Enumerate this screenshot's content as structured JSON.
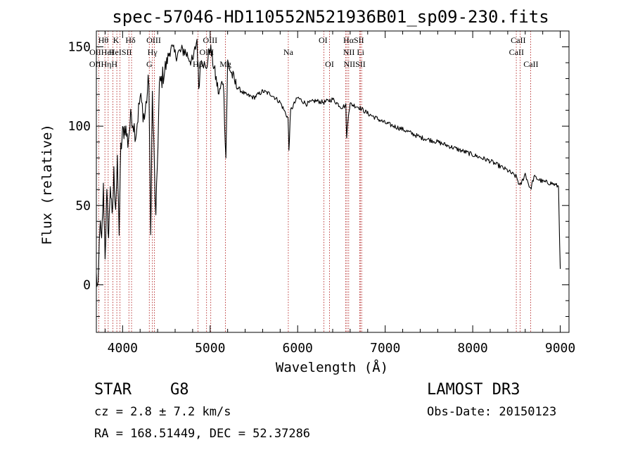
{
  "chart_data": {
    "type": "line",
    "title": "spec-57046-HD110552N521936B01_sp09-230.fits",
    "xlabel": "Wavelength (Å)",
    "ylabel": "Flux (relative)",
    "xlim": [
      3700,
      9100
    ],
    "ylim": [
      -30,
      160
    ],
    "xticks": [
      4000,
      5000,
      6000,
      7000,
      8000,
      9000
    ],
    "xtick_labels": [
      "4000",
      "5000",
      "6000",
      "7000",
      "8000",
      "9000"
    ],
    "yticks": [
      0,
      50,
      100,
      150
    ],
    "ytick_labels": [
      "0",
      "50",
      "100",
      "150"
    ],
    "grid": false,
    "series": [
      {
        "name": "flux",
        "x": [
          3700,
          3720,
          3740,
          3760,
          3780,
          3800,
          3820,
          3840,
          3860,
          3880,
          3900,
          3920,
          3940,
          3960,
          3980,
          4000,
          4030,
          4060,
          4100,
          4150,
          4200,
          4250,
          4300,
          4320,
          4340,
          4380,
          4420,
          4480,
          4550,
          4600,
          4700,
          4800,
          4850,
          4870,
          4900,
          4950,
          5000,
          5100,
          5150,
          5180,
          5200,
          5300,
          5400,
          5500,
          5600,
          5700,
          5800,
          5890,
          5900,
          5920,
          6000,
          6100,
          6200,
          6300,
          6400,
          6500,
          6550,
          6560,
          6580,
          6600,
          6700,
          6800,
          6900,
          7000,
          7200,
          7400,
          7600,
          7800,
          8000,
          8200,
          8400,
          8500,
          8540,
          8600,
          8660,
          8700,
          8800,
          8900,
          8980,
          9000
        ],
        "y": [
          5,
          -5,
          40,
          25,
          60,
          20,
          55,
          30,
          65,
          40,
          70,
          50,
          75,
          35,
          85,
          95,
          100,
          90,
          108,
          95,
          118,
          105,
          130,
          30,
          120,
          40,
          125,
          135,
          150,
          145,
          148,
          140,
          155,
          125,
          145,
          135,
          150,
          120,
          130,
          80,
          140,
          125,
          120,
          118,
          122,
          120,
          115,
          105,
          85,
          110,
          118,
          114,
          116,
          115,
          117,
          112,
          113,
          92,
          108,
          114,
          112,
          108,
          105,
          102,
          98,
          93,
          90,
          86,
          82,
          78,
          72,
          68,
          62,
          70,
          60,
          68,
          65,
          64,
          62,
          10
        ]
      }
    ],
    "lines": [
      {
        "name": "Hθ",
        "wave": 3798
      },
      {
        "name": "OII",
        "wave": 3727
      },
      {
        "name": "Hη",
        "wave": 3835
      },
      {
        "name": "CaII K",
        "wave": 3934
      },
      {
        "name": "HeI",
        "wave": 3889
      },
      {
        "name": "Hε",
        "wave": 3970
      },
      {
        "name": "SII",
        "wave": 4072
      },
      {
        "name": "Hδ",
        "wave": 4102
      },
      {
        "name": "OIII",
        "wave": 4363
      },
      {
        "name": "Hγ",
        "wave": 4340
      },
      {
        "name": "G",
        "wave": 4305
      },
      {
        "name": "Hβ",
        "wave": 4861
      },
      {
        "name": "OIII",
        "wave": 4959
      },
      {
        "name": "OIII",
        "wave": 5007
      },
      {
        "name": "Mg",
        "wave": 5175
      },
      {
        "name": "Na",
        "wave": 5893
      },
      {
        "name": "OI",
        "wave": 6300
      },
      {
        "name": "OI",
        "wave": 6364
      },
      {
        "name": "NII",
        "wave": 6548
      },
      {
        "name": "Hα",
        "wave": 6563
      },
      {
        "name": "NII",
        "wave": 6583
      },
      {
        "name": "Li",
        "wave": 6708
      },
      {
        "name": "SII",
        "wave": 6716
      },
      {
        "name": "SII",
        "wave": 6731
      },
      {
        "name": "CaII",
        "wave": 8498
      },
      {
        "name": "CaII",
        "wave": 8542
      },
      {
        "name": "CaII",
        "wave": 8662
      }
    ],
    "line_labels": [
      {
        "text": "Hθ",
        "wave": 3780,
        "row": 1
      },
      {
        "text": "K",
        "wave": 3925,
        "row": 1
      },
      {
        "text": "Hδ",
        "wave": 4090,
        "row": 1
      },
      {
        "text": "OIII",
        "wave": 4355,
        "row": 1
      },
      {
        "text": "OIII",
        "wave": 5000,
        "row": 1
      },
      {
        "text": "OI",
        "wave": 6290,
        "row": 1
      },
      {
        "text": "HαSII",
        "wave": 6640,
        "row": 1
      },
      {
        "text": "CaII",
        "wave": 8520,
        "row": 1
      },
      {
        "text": "OIIHeI",
        "wave": 3760,
        "row": 2
      },
      {
        "text": "HeISII",
        "wave": 3975,
        "row": 2
      },
      {
        "text": "Hγ",
        "wave": 4340,
        "row": 2
      },
      {
        "text": "OIII",
        "wave": 4960,
        "row": 2
      },
      {
        "text": "Na",
        "wave": 5893,
        "row": 2
      },
      {
        "text": "NII Li",
        "wave": 6640,
        "row": 2
      },
      {
        "text": "CaII",
        "wave": 8500,
        "row": 2
      },
      {
        "text": "OIIHηH",
        "wave": 3780,
        "row": 3
      },
      {
        "text": "G",
        "wave": 4305,
        "row": 3
      },
      {
        "text": "Hβ",
        "wave": 4860,
        "row": 3
      },
      {
        "text": "Mg",
        "wave": 5175,
        "row": 3
      },
      {
        "text": "OI",
        "wave": 6364,
        "row": 3
      },
      {
        "text": "NIISII",
        "wave": 6650,
        "row": 3
      },
      {
        "text": "CaII",
        "wave": 8665,
        "row": 3
      }
    ]
  },
  "info": {
    "object_class": "STAR",
    "subclass": "G8",
    "survey": "LAMOST DR3",
    "cz": "cz = 2.8 ± 7.2 km/s",
    "obs_date": "Obs-Date: 20150123",
    "coords": "RA = 168.51449, DEC =  52.37286"
  },
  "colors": {
    "spectrum": "#000000",
    "line_markers": "#b22222",
    "background": "#ffffff"
  }
}
